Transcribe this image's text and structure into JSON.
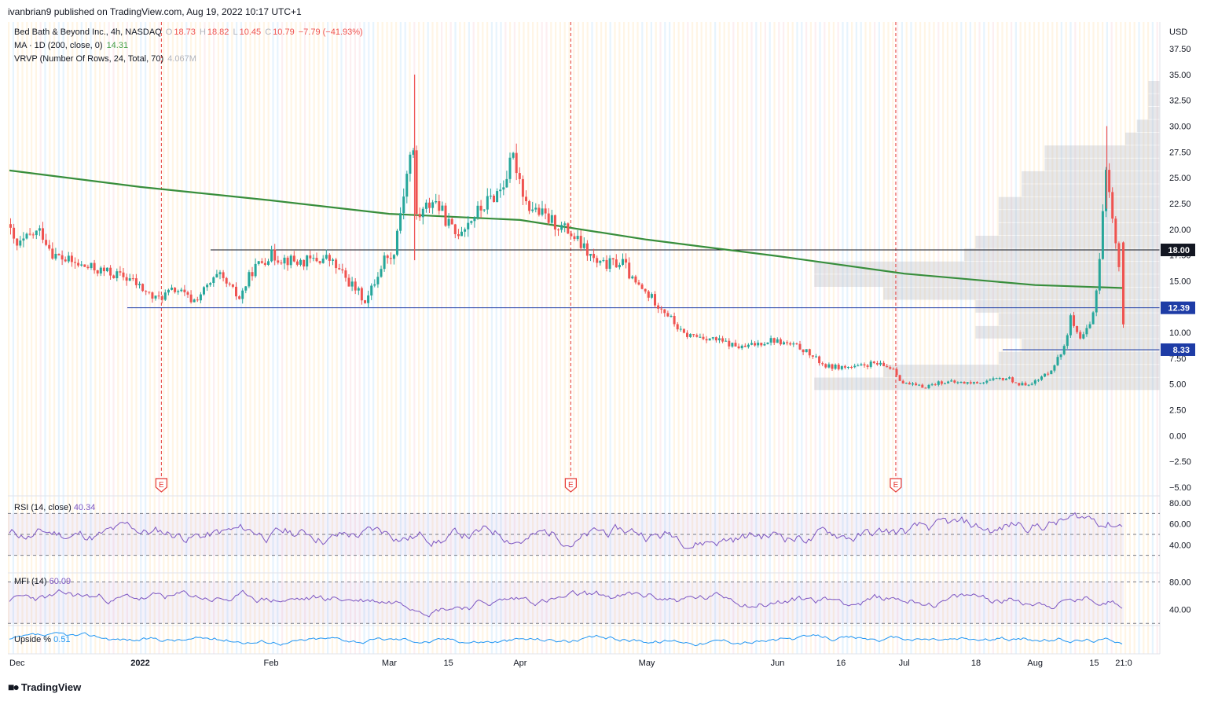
{
  "publish_line": "ivanbrian9 published on TradingView.com, Aug 19, 2022 10:17 UTC+1",
  "legend": {
    "symbol": "Bed Bath & Beyond Inc., 4h, NASDAQ",
    "o_label": "O",
    "o": "18.73",
    "h_label": "H",
    "h": "18.82",
    "l_label": "L",
    "l": "10.45",
    "c_label": "C",
    "c": "10.79",
    "change": "−7.79 (−41.93%)",
    "ma_label": "MA · 1D (200, close, 0)",
    "ma_value": "14.31",
    "vrvp_label": "VRVP (Number Of Rows, 24, Total, 70)",
    "vrvp_value": "4.067M"
  },
  "rsi": {
    "label": "RSI (14, close)",
    "value": "40.34",
    "ticks": [
      "80.00",
      "60.00",
      "40.00"
    ]
  },
  "mfi": {
    "label": "MFI (14)",
    "value": "60.09",
    "ticks": [
      "80.00",
      "40.00"
    ]
  },
  "upside": {
    "label": "Upside %",
    "value": "0.51"
  },
  "footer": {
    "brand": "TradingView"
  },
  "colors": {
    "up": "#26a69a",
    "down": "#ef5350",
    "ma": "#388e3c",
    "hline": "#1e3ca6",
    "resist": "#131722",
    "rsi": "#7e57c2",
    "upside": "#2196f3",
    "earnings": "#e53935"
  },
  "chart_data": {
    "type": "candlestick",
    "title": "Bed Bath & Beyond Inc., 4h, NASDAQ",
    "currency": "USD",
    "ylim": [
      -5,
      40
    ],
    "y_ticks": [
      37.5,
      35,
      32.5,
      30,
      27.5,
      25,
      22.5,
      20,
      17.5,
      15,
      12.5,
      10,
      7.5,
      5,
      2.5,
      0,
      -2.5,
      -5
    ],
    "y_tick_labels": [
      "37.50",
      "35.00",
      "32.50",
      "30.00",
      "27.50",
      "25.00",
      "22.50",
      "20.00",
      "17.50",
      "15.00",
      "12.50",
      "10.00",
      "7.50",
      "5.00",
      "2.50",
      "0.00",
      "−2.50",
      "−5.00"
    ],
    "x_tick_labels": [
      "Dec",
      "2022",
      "Feb",
      "Mar",
      "15",
      "Apr",
      "May",
      "Jun",
      "16",
      "Jul",
      "18",
      "Aug",
      "15",
      "21:0"
    ],
    "x_tick_dates": [
      "2021-12-01",
      "2022-01-01",
      "2022-02-01",
      "2022-03-01",
      "2022-03-15",
      "2022-04-01",
      "2022-05-01",
      "2022-06-01",
      "2022-06-16",
      "2022-07-01",
      "2022-07-18",
      "2022-08-01",
      "2022-08-15",
      "2022-08-22"
    ],
    "price_path": [
      [
        "2021-12-01",
        20.5
      ],
      [
        "2021-12-03",
        18.2
      ],
      [
        "2021-12-07",
        19.5
      ],
      [
        "2021-12-09",
        19.8
      ],
      [
        "2021-12-12",
        17.5
      ],
      [
        "2021-12-18",
        16.5
      ],
      [
        "2021-12-25",
        15.8
      ],
      [
        "2021-12-30",
        15.2
      ],
      [
        "2022-01-05",
        13.2
      ],
      [
        "2022-01-10",
        14.2
      ],
      [
        "2022-01-14",
        13.0
      ],
      [
        "2022-01-20",
        15.5
      ],
      [
        "2022-01-25",
        13.3
      ],
      [
        "2022-01-28",
        16.0
      ],
      [
        "2022-02-01",
        17.5
      ],
      [
        "2022-02-08",
        16.8
      ],
      [
        "2022-02-15",
        17.2
      ],
      [
        "2022-02-24",
        13.0
      ],
      [
        "2022-03-01",
        17.8
      ],
      [
        "2022-03-02",
        16.7
      ],
      [
        "2022-03-07",
        28.6
      ],
      [
        "2022-03-08",
        21.0
      ],
      [
        "2022-03-12",
        23.0
      ],
      [
        "2022-03-17",
        19.5
      ],
      [
        "2022-03-22",
        21.5
      ],
      [
        "2022-03-28",
        24.0
      ],
      [
        "2022-03-31",
        27.0
      ],
      [
        "2022-04-03",
        22.5
      ],
      [
        "2022-04-08",
        21.0
      ],
      [
        "2022-04-13",
        19.8
      ],
      [
        "2022-04-20",
        16.5
      ],
      [
        "2022-04-26",
        16.8
      ],
      [
        "2022-04-28",
        15.0
      ],
      [
        "2022-05-03",
        13.2
      ],
      [
        "2022-05-06",
        12.0
      ],
      [
        "2022-05-10",
        9.8
      ],
      [
        "2022-05-16",
        9.5
      ],
      [
        "2022-05-24",
        8.5
      ],
      [
        "2022-05-31",
        9.3
      ],
      [
        "2022-06-07",
        8.5
      ],
      [
        "2022-06-13",
        6.7
      ],
      [
        "2022-06-20",
        6.6
      ],
      [
        "2022-06-24",
        7.0
      ],
      [
        "2022-06-29",
        6.5
      ],
      [
        "2022-07-01",
        5.1
      ],
      [
        "2022-07-06",
        4.7
      ],
      [
        "2022-07-10",
        5.2
      ],
      [
        "2022-07-18",
        5.1
      ],
      [
        "2022-07-26",
        5.6
      ],
      [
        "2022-07-29",
        4.9
      ],
      [
        "2022-08-02",
        5.3
      ],
      [
        "2022-08-05",
        6.3
      ],
      [
        "2022-08-08",
        8.2
      ],
      [
        "2022-08-10",
        11.5
      ],
      [
        "2022-08-12",
        9.0
      ],
      [
        "2022-08-15",
        11.0
      ],
      [
        "2022-08-17",
        18.0
      ],
      [
        "2022-08-18",
        26.0
      ],
      [
        "2022-08-19",
        24.0
      ],
      [
        "2022-08-20",
        20.0
      ],
      [
        "2022-08-21",
        18.7
      ],
      [
        "2022-08-22",
        10.8
      ]
    ],
    "ma_200": {
      "label": "MA · 1D (200, close, 0)",
      "value": 14.31,
      "points": [
        [
          "2021-12-01",
          25.7
        ],
        [
          "2022-01-01",
          24.1
        ],
        [
          "2022-02-01",
          22.8
        ],
        [
          "2022-03-01",
          21.5
        ],
        [
          "2022-04-01",
          20.9
        ],
        [
          "2022-05-01",
          19.0
        ],
        [
          "2022-06-01",
          17.4
        ],
        [
          "2022-07-01",
          15.7
        ],
        [
          "2022-08-01",
          14.6
        ],
        [
          "2022-08-22",
          14.31
        ]
      ]
    },
    "horizontal_levels": [
      {
        "price": 18.0,
        "label": "18.00",
        "color": "#131722"
      },
      {
        "price": 12.39,
        "label": "12.39",
        "color": "#1e3ca6"
      },
      {
        "price": 8.33,
        "label": "8.33",
        "color": "#1e3ca6"
      }
    ],
    "earnings_markers": [
      "2022-01-06",
      "2022-04-13",
      "2022-06-29"
    ],
    "vrvp_profile": [
      [
        5.0,
        0.3
      ],
      [
        6.25,
        0.24
      ],
      [
        7.5,
        0.14
      ],
      [
        8.75,
        0.12
      ],
      [
        10.0,
        0.16
      ],
      [
        11.25,
        0.14
      ],
      [
        12.5,
        0.16
      ],
      [
        13.75,
        0.24
      ],
      [
        15.0,
        0.3
      ],
      [
        16.25,
        0.3
      ],
      [
        17.5,
        0.17
      ],
      [
        18.75,
        0.16
      ],
      [
        20.0,
        0.14
      ],
      [
        21.25,
        0.14
      ],
      [
        22.5,
        0.14
      ],
      [
        23.75,
        0.12
      ],
      [
        25.0,
        0.12
      ],
      [
        26.25,
        0.1
      ],
      [
        27.5,
        0.1
      ],
      [
        28.75,
        0.03
      ],
      [
        30.0,
        0.02
      ],
      [
        31.25,
        0.01
      ],
      [
        32.5,
        0.01
      ],
      [
        33.75,
        0.01
      ]
    ]
  }
}
